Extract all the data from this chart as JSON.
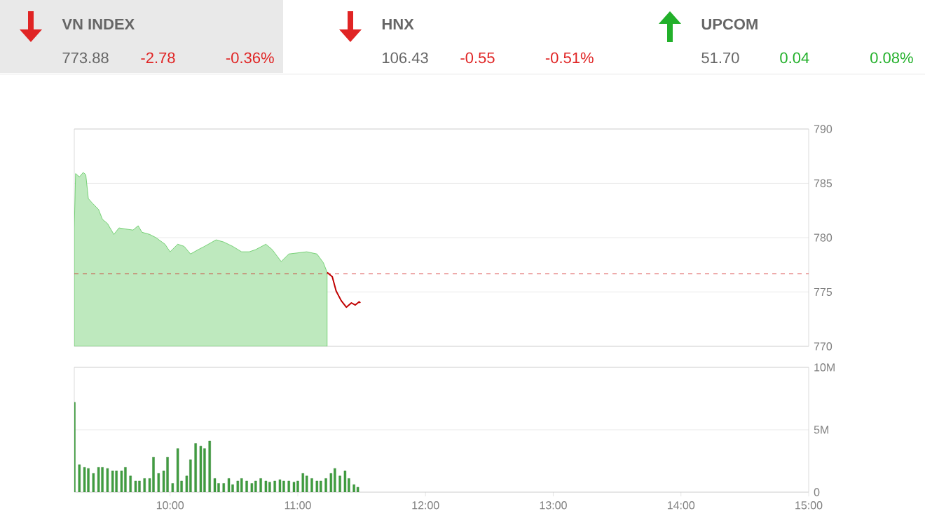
{
  "chart_data": [
    {
      "type": "other",
      "series": [
        {
          "name": "VN INDEX",
          "color": "#e02424"
        },
        {
          "name": "HNX",
          "color": "#e02424"
        },
        {
          "name": "UPCOM",
          "color": "#22b02a"
        }
      ],
      "annotations": [
        "773.88",
        "-2.78",
        "-0.36%",
        "106.43",
        "-0.55",
        "-0.51%",
        "51.70",
        "0.04",
        "0.08%"
      ]
    },
    {
      "type": "area",
      "xlim": [
        9.25,
        15
      ],
      "ylim": [
        770,
        790
      ],
      "yticks": [
        770,
        775,
        780,
        785,
        790
      ],
      "xticks": [
        {
          "value": 10,
          "label": null
        },
        {
          "value": 11,
          "label": null
        },
        {
          "value": 12,
          "label": null
        },
        {
          "value": 13,
          "label": null
        },
        {
          "value": 14,
          "label": null
        },
        {
          "value": 15,
          "label": null
        }
      ],
      "tick_labels": "y",
      "grid": "y",
      "ref_lines": [
        {
          "axis": "y",
          "value": 776.66,
          "color": "#d01818",
          "line_style": "dashed"
        }
      ],
      "series": [
        {
          "type": "area",
          "color": "#5cc85c",
          "x": [
            9.25,
            9.26,
            9.29,
            9.32,
            9.34,
            9.36,
            9.39,
            9.44,
            9.47,
            9.51,
            9.56,
            9.6,
            9.65,
            9.71,
            9.75,
            9.78,
            9.84,
            9.89,
            9.96,
            10.0,
            10.06,
            10.11,
            10.16,
            10.22,
            10.27,
            10.36,
            10.42,
            10.49,
            10.56,
            10.62,
            10.67,
            10.75,
            10.8,
            10.87,
            10.93,
            11.0,
            11.07,
            11.15,
            11.2,
            11.23
          ],
          "values": [
            780.9,
            785.9,
            785.6,
            786.0,
            785.8,
            783.6,
            783.2,
            782.6,
            781.7,
            781.3,
            780.3,
            780.9,
            780.8,
            780.7,
            781.1,
            780.5,
            780.3,
            780.0,
            779.4,
            778.7,
            779.4,
            779.2,
            778.5,
            778.9,
            779.2,
            779.8,
            779.6,
            779.2,
            778.7,
            778.7,
            778.9,
            779.4,
            778.9,
            777.8,
            778.5,
            778.6,
            778.7,
            778.5,
            777.7,
            776.8
          ]
        },
        {
          "type": "line",
          "color": "#c00000",
          "x": [
            11.23,
            11.27,
            11.3,
            11.34,
            11.38,
            11.42,
            11.45,
            11.48,
            11.49
          ],
          "values": [
            776.8,
            776.4,
            775.1,
            774.2,
            773.6,
            774.0,
            773.8,
            774.1,
            774.0
          ]
        }
      ]
    },
    {
      "type": "bar",
      "xlim": [
        9.25,
        15
      ],
      "ylim": [
        0,
        10
      ],
      "yticks": [
        0,
        {
          "value": 5,
          "label": "5M"
        },
        {
          "value": 10,
          "label": "10M"
        }
      ],
      "xticks": [
        {
          "value": 10,
          "label": "10:00"
        },
        {
          "value": 11,
          "label": "11:00"
        },
        {
          "value": 12,
          "label": "12:00"
        },
        {
          "value": 13,
          "label": "13:00"
        },
        {
          "value": 14,
          "label": "14:00"
        },
        {
          "value": 15,
          "label": "15:00"
        }
      ],
      "grid": "y",
      "series": [
        {
          "color": "#3f9e3f",
          "x": [
            9.25,
            9.29,
            9.33,
            9.36,
            9.4,
            9.44,
            9.47,
            9.51,
            9.55,
            9.58,
            9.62,
            9.65,
            9.69,
            9.73,
            9.76,
            9.8,
            9.84,
            9.87,
            9.91,
            9.95,
            9.98,
            10.02,
            10.06,
            10.09,
            10.13,
            10.16,
            10.2,
            10.24,
            10.27,
            10.31,
            10.35,
            10.38,
            10.42,
            10.46,
            10.49,
            10.53,
            10.56,
            10.6,
            10.64,
            10.67,
            10.71,
            10.75,
            10.78,
            10.82,
            10.86,
            10.89,
            10.93,
            10.97,
            11.0,
            11.04,
            11.07,
            11.11,
            11.15,
            11.18,
            11.22,
            11.26,
            11.29,
            11.33,
            11.37,
            11.4,
            11.44,
            11.47
          ],
          "values": [
            7.2,
            2.2,
            2.0,
            1.9,
            1.5,
            2.0,
            2.0,
            1.9,
            1.7,
            1.7,
            1.7,
            2.0,
            1.3,
            0.9,
            0.9,
            1.1,
            1.1,
            2.8,
            1.5,
            1.7,
            2.8,
            0.7,
            3.5,
            0.9,
            1.3,
            2.6,
            3.9,
            3.7,
            3.5,
            4.1,
            1.1,
            0.7,
            0.7,
            1.1,
            0.6,
            0.9,
            1.1,
            0.9,
            0.7,
            0.9,
            1.1,
            0.9,
            0.8,
            0.9,
            1.0,
            0.9,
            0.9,
            0.8,
            0.9,
            1.5,
            1.3,
            1.1,
            0.9,
            0.9,
            1.1,
            1.5,
            1.9,
            1.3,
            1.7,
            1.1,
            0.6,
            0.4
          ]
        }
      ]
    }
  ]
}
